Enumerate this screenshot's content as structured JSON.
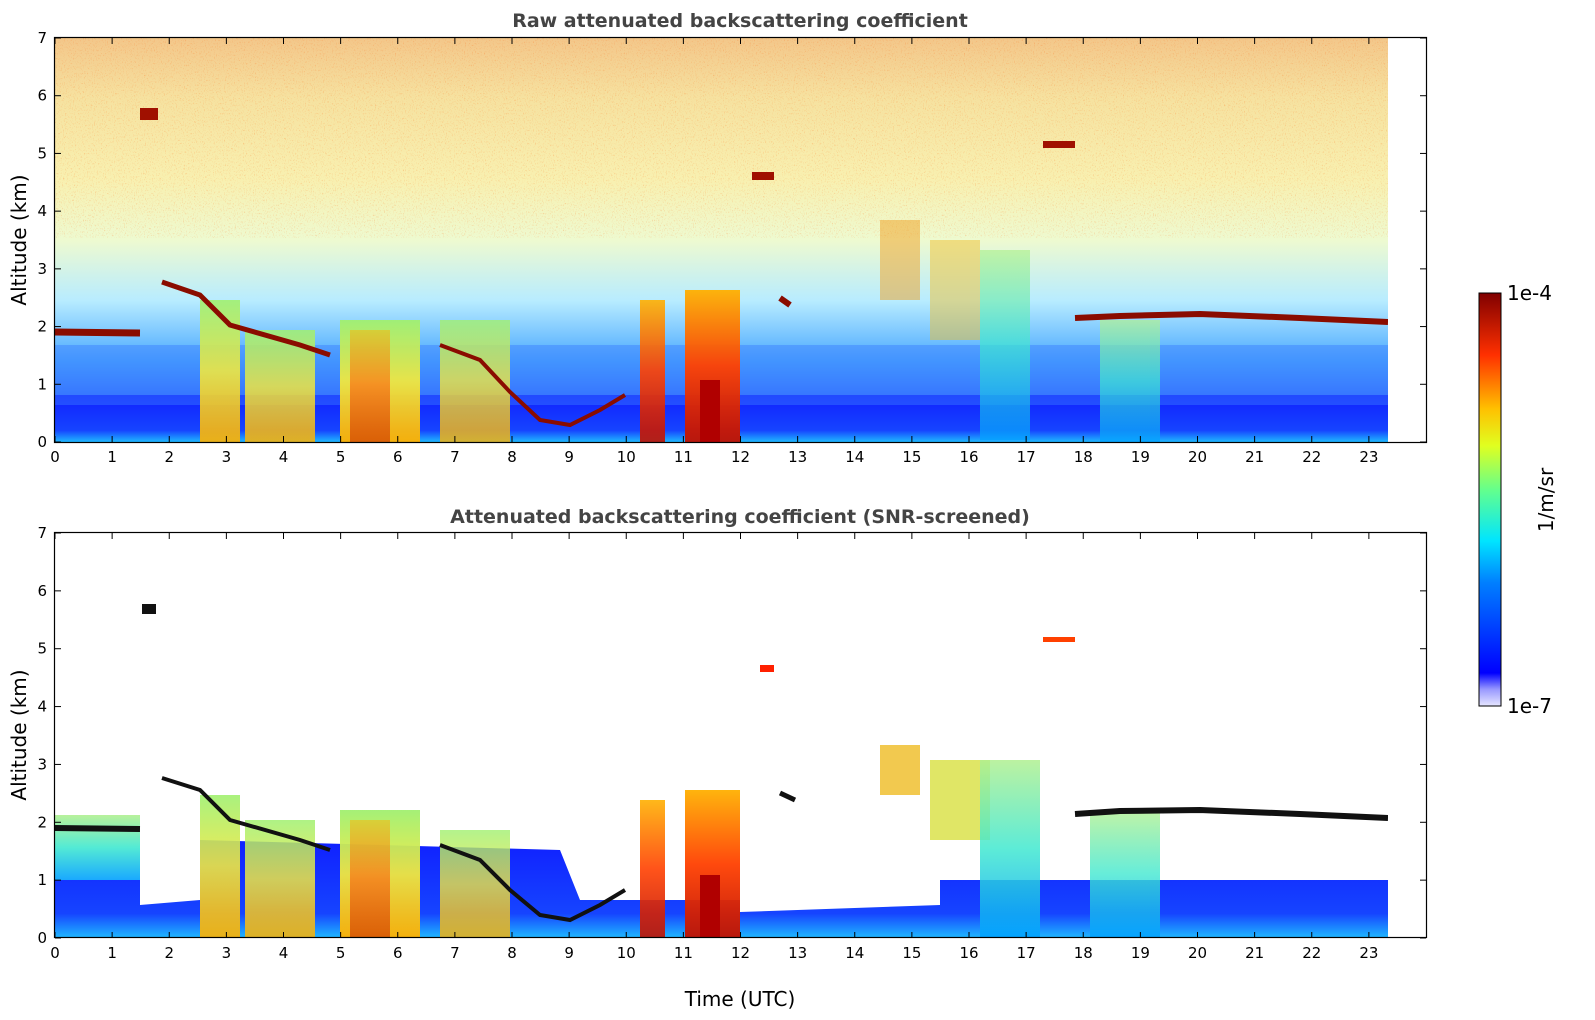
{
  "chart_data": [
    {
      "type": "heatmap",
      "title": "Raw attenuated backscattering coefficient",
      "xlabel": "",
      "ylabel": "Altitude (km)",
      "xlim": [
        0,
        24
      ],
      "ylim": [
        0,
        7
      ],
      "x_ticks": [
        0,
        1,
        2,
        3,
        4,
        5,
        6,
        7,
        8,
        9,
        10,
        11,
        12,
        13,
        14,
        15,
        16,
        17,
        18,
        19,
        20,
        21,
        22,
        23
      ],
      "y_ticks": [
        0,
        1,
        2,
        3,
        4,
        5,
        6,
        7
      ],
      "data_extent_x": [
        0,
        23.3
      ],
      "features": [
        {
          "label": "cloud",
          "t_start": 0.0,
          "t_end": 1.5,
          "alt": 1.85,
          "value": "1e-4"
        },
        {
          "label": "cloud",
          "t_start": 1.9,
          "t_end": 2.6,
          "alt": 2.7,
          "value": "1e-4"
        },
        {
          "label": "cloud",
          "t_start": 3.0,
          "t_end": 4.6,
          "alt": 1.8,
          "value": "1e-4"
        },
        {
          "label": "cloud",
          "t_start": 6.5,
          "t_end": 7.3,
          "alt": 1.5,
          "value": "1e-4"
        },
        {
          "label": "cloud",
          "t_start": 7.8,
          "t_end": 9.9,
          "alt": 0.4,
          "value": "1e-4"
        },
        {
          "label": "cloud",
          "t_start": 1.5,
          "t_end": 1.8,
          "alt": 5.65,
          "value": "1e-4"
        },
        {
          "label": "cloud",
          "t_start": 12.3,
          "t_end": 12.6,
          "alt": 4.6,
          "value": "1e-4"
        },
        {
          "label": "cloud",
          "t_start": 17.3,
          "t_end": 17.8,
          "alt": 5.15,
          "value": "1e-4"
        },
        {
          "label": "cloud",
          "t_start": 18.0,
          "t_end": 23.3,
          "alt": 2.1,
          "value": "1e-4"
        },
        {
          "label": "convection",
          "t_start": 11.0,
          "t_end": 12.0,
          "alt": 1.2,
          "value": "1e-5"
        }
      ]
    },
    {
      "type": "heatmap",
      "title": "Attenuated backscattering coefficient (SNR-screened)",
      "xlabel": "Time (UTC)",
      "ylabel": "Altitude (km)",
      "xlim": [
        0,
        24
      ],
      "ylim": [
        0,
        7
      ],
      "x_ticks": [
        0,
        1,
        2,
        3,
        4,
        5,
        6,
        7,
        8,
        9,
        10,
        11,
        12,
        13,
        14,
        15,
        16,
        17,
        18,
        19,
        20,
        21,
        22,
        23
      ],
      "y_ticks": [
        0,
        1,
        2,
        3,
        4,
        5,
        6,
        7
      ],
      "data_extent_x": [
        0,
        23.3
      ]
    }
  ],
  "colorbar": {
    "label": "1/m/sr",
    "max_label": "1e-4",
    "min_label": "1e-7",
    "scale": "log",
    "colormap": "jet",
    "colors": [
      "#00007f",
      "#0000ff",
      "#007fff",
      "#00ffff",
      "#7fff7f",
      "#ffff00",
      "#ff7f00",
      "#ff0000",
      "#7f0000"
    ]
  }
}
